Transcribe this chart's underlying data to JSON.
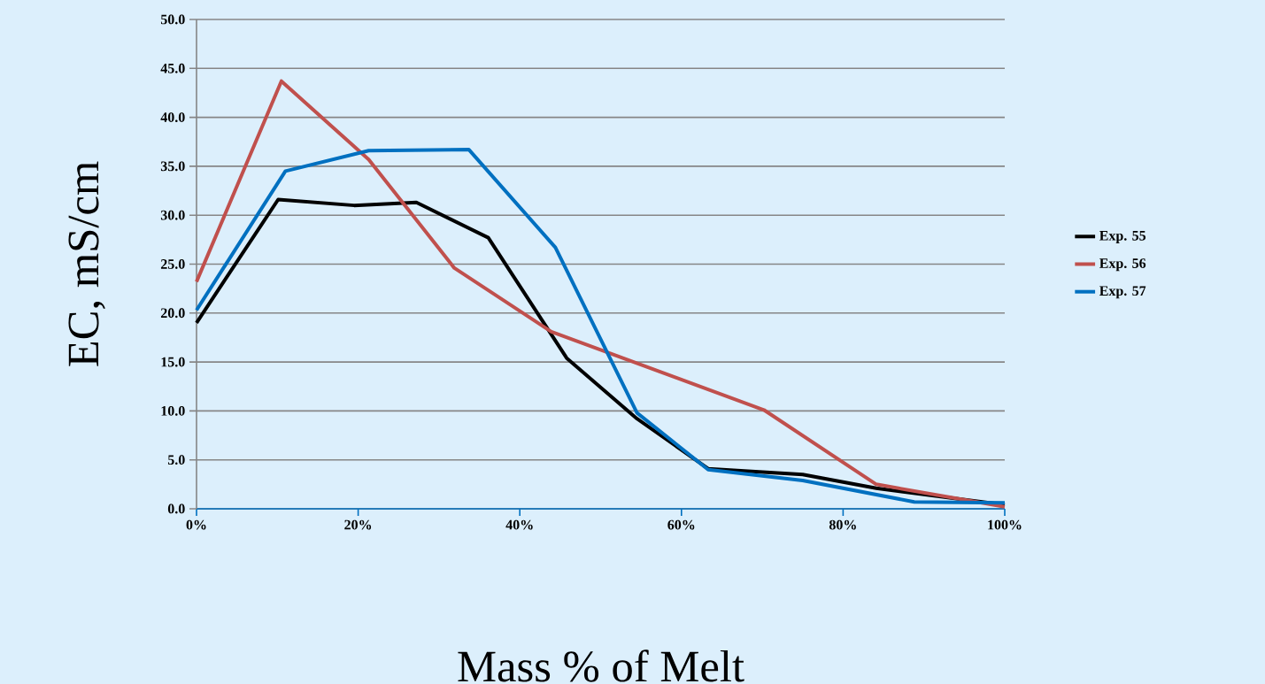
{
  "chart_data": {
    "type": "line",
    "xlabel": "Mass % of Melt",
    "ylabel": "EC, mS/cm",
    "xlim": [
      0,
      100
    ],
    "xticks": [
      {
        "value": 0,
        "label": "0%"
      },
      {
        "value": 20,
        "label": "20%"
      },
      {
        "value": 40,
        "label": "40%"
      },
      {
        "value": 60,
        "label": "60%"
      },
      {
        "value": 80,
        "label": "80%"
      },
      {
        "value": 100,
        "label": "100%"
      }
    ],
    "ylim": [
      0,
      50
    ],
    "yticks": [
      {
        "value": 0,
        "label": "0.0"
      },
      {
        "value": 5,
        "label": "5.0"
      },
      {
        "value": 10,
        "label": "10.0"
      },
      {
        "value": 15,
        "label": "15.0"
      },
      {
        "value": 20,
        "label": "20.0"
      },
      {
        "value": 25,
        "label": "25.0"
      },
      {
        "value": 30,
        "label": "30.0"
      },
      {
        "value": 35,
        "label": "35.0"
      },
      {
        "value": 40,
        "label": "40.0"
      },
      {
        "value": 45,
        "label": "45.0"
      },
      {
        "value": 50,
        "label": "50.0"
      }
    ],
    "grid": "y",
    "legend": "right",
    "marker": "none",
    "line_style": "solid",
    "series": [
      {
        "name": "Exp. 55",
        "color": "#000000",
        "x": [
          0,
          10.1,
          19.5,
          27.2,
          36.1,
          45.8,
          54.5,
          63.3,
          75,
          84.1,
          100
        ],
        "values": [
          19.0,
          31.6,
          31.0,
          31.3,
          27.7,
          15.4,
          9.2,
          4.1,
          3.5,
          2.1,
          0.4
        ]
      },
      {
        "name": "Exp. 56",
        "color": "#c0504d",
        "x": [
          0,
          10.5,
          21.3,
          31.9,
          43.9,
          70.2,
          84.1,
          100
        ],
        "values": [
          23.2,
          43.7,
          35.7,
          24.6,
          18.1,
          10.1,
          2.5,
          0.2
        ]
      },
      {
        "name": "Exp. 57",
        "color": "#0070c0",
        "x": [
          0,
          11.0,
          21.3,
          33.7,
          44.4,
          54.5,
          63.3,
          75,
          88.8,
          100
        ],
        "values": [
          20.3,
          34.5,
          36.6,
          36.7,
          26.7,
          9.8,
          4.0,
          2.9,
          0.7,
          0.6
        ]
      }
    ]
  }
}
